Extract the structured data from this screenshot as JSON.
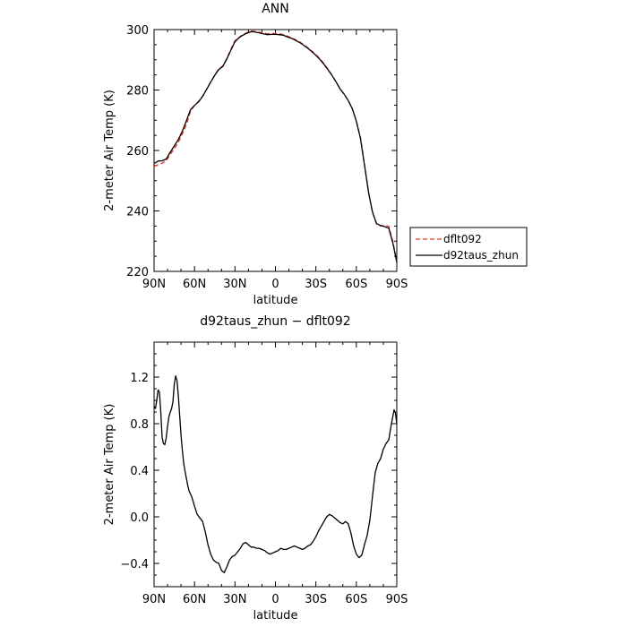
{
  "chart_data": [
    {
      "type": "line",
      "title": "ANN",
      "xlabel": "latitude",
      "ylabel": "2-meter Air Temp (K)",
      "xlim": [
        90,
        -90
      ],
      "ylim": [
        220,
        300
      ],
      "x_ticks": [
        90,
        60,
        30,
        0,
        -30,
        -60,
        -90
      ],
      "x_tick_labels": [
        "90N",
        "60N",
        "30N",
        "0",
        "30S",
        "60S",
        "90S"
      ],
      "y_ticks": [
        220,
        240,
        260,
        280,
        300
      ],
      "y_tick_labels": [
        "220",
        "240",
        "260",
        "280",
        "300"
      ],
      "legend_position": "right",
      "series": [
        {
          "name": "dflt092",
          "color": "#e8302c",
          "dash": "dashed",
          "x": [
            90,
            87,
            84,
            81,
            78,
            75,
            72,
            69,
            66,
            63,
            60,
            57,
            54,
            51,
            48,
            45,
            42,
            39,
            36,
            33,
            30,
            27,
            24,
            21,
            18,
            15,
            12,
            9,
            6,
            3,
            0,
            -3,
            -6,
            -9,
            -12,
            -15,
            -18,
            -21,
            -24,
            -27,
            -30,
            -33,
            -36,
            -39,
            -42,
            -45,
            -48,
            -51,
            -54,
            -57,
            -60,
            -63,
            -66,
            -69,
            -72,
            -75,
            -78,
            -81,
            -84,
            -87,
            -90
          ],
          "y": [
            254.7,
            255.3,
            255.8,
            256.6,
            258.7,
            260.6,
            262.7,
            265.5,
            268.6,
            273.0,
            274.8,
            276.3,
            278.0,
            280.3,
            282.7,
            285.0,
            287.0,
            288.0,
            290.5,
            293.5,
            296.3,
            297.4,
            298.4,
            299.0,
            299.5,
            299.4,
            299.1,
            298.8,
            298.6,
            298.7,
            298.7,
            298.6,
            298.3,
            297.8,
            297.3,
            296.6,
            295.9,
            295.0,
            294.0,
            292.9,
            291.7,
            290.3,
            288.7,
            286.9,
            284.9,
            282.6,
            280.3,
            278.6,
            276.5,
            273.9,
            269.8,
            264.4,
            255.5,
            246.5,
            239.5,
            235.7,
            235.0,
            235.3,
            234.9,
            230.0,
            223.5
          ]
        },
        {
          "name": "d92taus_zhun",
          "color": "#000000",
          "dash": "solid",
          "x": [
            90,
            87,
            84,
            81,
            78,
            75,
            72,
            69,
            66,
            63,
            60,
            57,
            54,
            51,
            48,
            45,
            42,
            39,
            36,
            33,
            30,
            27,
            24,
            21,
            18,
            15,
            12,
            9,
            6,
            3,
            0,
            -3,
            -6,
            -9,
            -12,
            -15,
            -18,
            -21,
            -24,
            -27,
            -30,
            -33,
            -36,
            -39,
            -42,
            -45,
            -48,
            -51,
            -54,
            -57,
            -60,
            -63,
            -66,
            -69,
            -72,
            -75,
            -78,
            -81,
            -84,
            -87,
            -90
          ],
          "y": [
            255.7,
            256.5,
            256.6,
            257.2,
            259.4,
            261.5,
            263.6,
            266.4,
            269.8,
            273.5,
            274.9,
            276.1,
            277.9,
            280.2,
            282.6,
            284.9,
            286.8,
            287.8,
            290.3,
            293.2,
            296.0,
            297.3,
            298.2,
            298.8,
            299.3,
            299.2,
            298.9,
            298.6,
            298.3,
            298.4,
            298.4,
            298.3,
            298.1,
            297.5,
            297.1,
            296.4,
            295.7,
            294.8,
            293.8,
            292.7,
            291.5,
            290.1,
            288.5,
            286.7,
            284.8,
            282.6,
            280.3,
            278.6,
            276.5,
            273.8,
            269.7,
            264.0,
            255.2,
            246.2,
            239.6,
            235.8,
            235.2,
            234.8,
            234.3,
            229.5,
            223.0
          ]
        }
      ]
    },
    {
      "type": "line",
      "title": "d92taus_zhun − dflt092",
      "xlabel": "latitude",
      "ylabel": "2-meter Air Temp (K)",
      "xlim": [
        90,
        -90
      ],
      "ylim": [
        -0.6,
        1.5
      ],
      "x_ticks": [
        90,
        60,
        30,
        0,
        -30,
        -60,
        -90
      ],
      "x_tick_labels": [
        "90N",
        "60N",
        "30N",
        "0",
        "30S",
        "60S",
        "90S"
      ],
      "y_ticks": [
        -0.4,
        0.0,
        0.4,
        0.8,
        1.2
      ],
      "y_tick_labels": [
        "−0.4",
        "0.0",
        "0.4",
        "0.8",
        "1.2"
      ],
      "series": [
        {
          "color": "#000000",
          "dash": "solid",
          "x": [
            90,
            89,
            88,
            87,
            86,
            85,
            84,
            83,
            82,
            81,
            80,
            79,
            78,
            77,
            76,
            75,
            74,
            73,
            72,
            71,
            70,
            69,
            68,
            67,
            66,
            65,
            64,
            62,
            60,
            58,
            56,
            54,
            52,
            50,
            48,
            46,
            44,
            42,
            40,
            38,
            36,
            34,
            32,
            30,
            28,
            26,
            24,
            22,
            20,
            18,
            16,
            14,
            12,
            10,
            8,
            6,
            4,
            2,
            0,
            -2,
            -4,
            -6,
            -8,
            -10,
            -12,
            -14,
            -16,
            -18,
            -20,
            -22,
            -24,
            -26,
            -28,
            -30,
            -32,
            -34,
            -36,
            -38,
            -40,
            -42,
            -44,
            -46,
            -48,
            -50,
            -52,
            -54,
            -56,
            -58,
            -60,
            -62,
            -64,
            -66,
            -68,
            -70,
            -72,
            -74,
            -76,
            -78,
            -80,
            -82,
            -84,
            -86,
            -88,
            -89,
            -90
          ],
          "y": [
            0.95,
            0.93,
            1.0,
            1.09,
            1.07,
            0.9,
            0.68,
            0.63,
            0.62,
            0.68,
            0.78,
            0.86,
            0.9,
            0.93,
            0.99,
            1.14,
            1.21,
            1.17,
            1.04,
            0.87,
            0.7,
            0.57,
            0.46,
            0.39,
            0.33,
            0.27,
            0.22,
            0.17,
            0.09,
            0.02,
            -0.01,
            -0.04,
            -0.13,
            -0.24,
            -0.32,
            -0.37,
            -0.39,
            -0.4,
            -0.46,
            -0.48,
            -0.43,
            -0.37,
            -0.34,
            -0.33,
            -0.3,
            -0.27,
            -0.23,
            -0.22,
            -0.24,
            -0.26,
            -0.26,
            -0.27,
            -0.27,
            -0.28,
            -0.29,
            -0.31,
            -0.32,
            -0.31,
            -0.3,
            -0.29,
            -0.27,
            -0.28,
            -0.28,
            -0.27,
            -0.26,
            -0.25,
            -0.26,
            -0.27,
            -0.28,
            -0.27,
            -0.25,
            -0.24,
            -0.21,
            -0.17,
            -0.12,
            -0.08,
            -0.04,
            0.0,
            0.02,
            0.01,
            -0.01,
            -0.03,
            -0.05,
            -0.06,
            -0.04,
            -0.06,
            -0.14,
            -0.25,
            -0.32,
            -0.35,
            -0.33,
            -0.24,
            -0.16,
            -0.03,
            0.18,
            0.38,
            0.46,
            0.5,
            0.58,
            0.63,
            0.66,
            0.8,
            0.92,
            0.89,
            0.8
          ]
        }
      ]
    }
  ]
}
